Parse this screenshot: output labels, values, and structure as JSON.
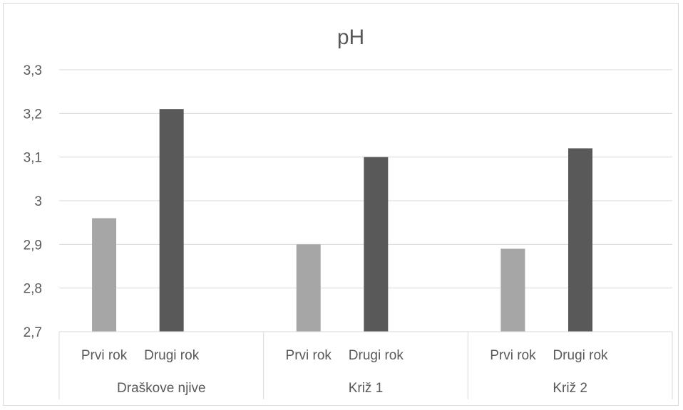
{
  "chart_data": {
    "type": "bar",
    "title": "pH",
    "groups": [
      "Draškove njive",
      "Križ 1",
      "Križ 2"
    ],
    "subcategories": [
      "Prvi rok",
      "Drugi rok"
    ],
    "values": [
      [
        2.96,
        3.21
      ],
      [
        2.9,
        3.1
      ],
      [
        2.89,
        3.12
      ]
    ],
    "series_colors": [
      "#a6a6a6",
      "#595959"
    ],
    "ylim": [
      2.7,
      3.3
    ],
    "yticks": [
      2.7,
      2.8,
      2.9,
      3.0,
      3.1,
      3.2,
      3.3
    ],
    "ytick_labels": [
      "2,7",
      "2,8",
      "2,9",
      "3",
      "3,1",
      "3,2",
      "3,3"
    ],
    "grid": true,
    "legend": "none"
  }
}
